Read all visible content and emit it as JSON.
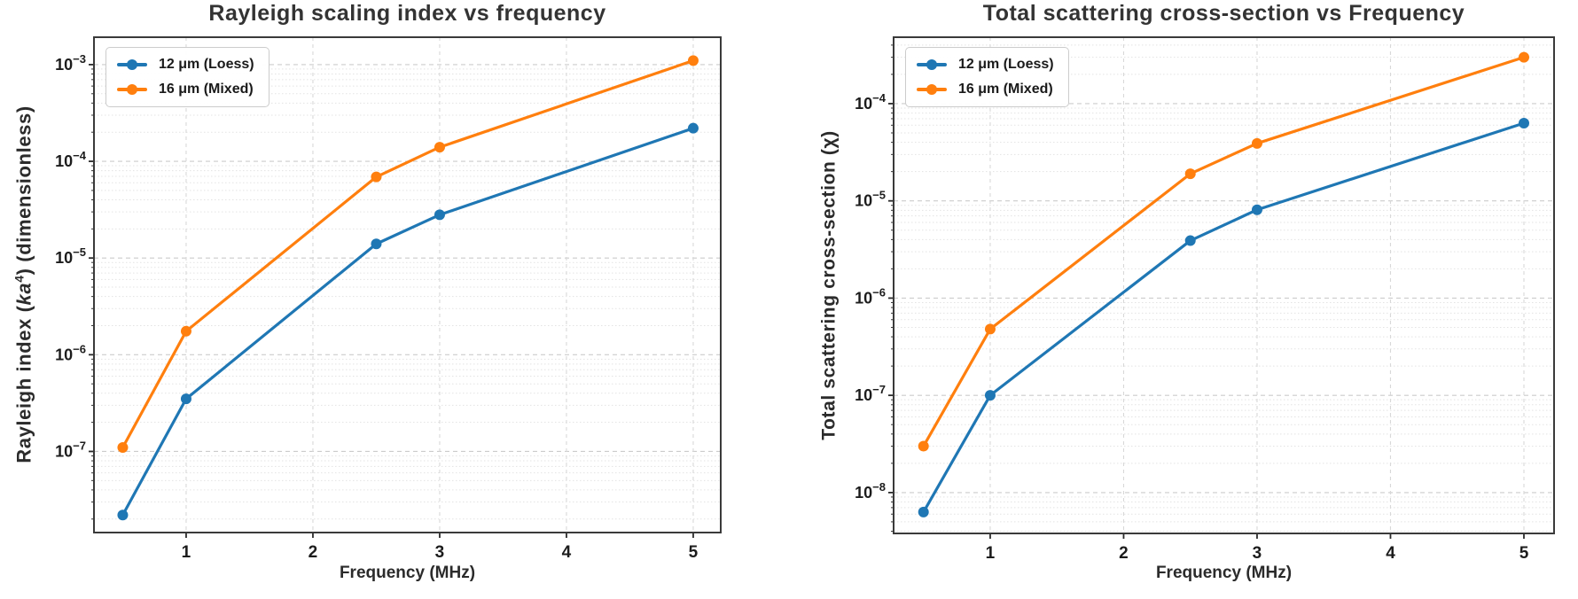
{
  "figure": {
    "background": "#ffffff",
    "text_color": "#333333",
    "accent_blue": "#1f77b4",
    "accent_orange": "#ff7f0e"
  },
  "chart_data": [
    {
      "type": "line",
      "title": "Rayleigh scaling index vs frequency",
      "xlabel": "Frequency (MHz)",
      "ylabel": "Rayleigh index (ka)⁴ (dimensionless)",
      "ylabel_parts": {
        "prefix": "Rayleigh index (",
        "math": "ka",
        "sup": "4",
        "suffix": ") (dimensionless)",
        "close": ")"
      },
      "yscale": "log",
      "grid": true,
      "legend_position": "upper left",
      "x": [
        0.5,
        1,
        2.5,
        3,
        5
      ],
      "series": [
        {
          "name": "12 μm (Loess)",
          "color": "#1f77b4",
          "marker": "circle",
          "values": [
            2.2e-08,
            3.5e-07,
            1.4e-05,
            2.8e-05,
            0.00022
          ]
        },
        {
          "name": "16 μm (Mixed)",
          "color": "#ff7f0e",
          "marker": "circle",
          "values": [
            1.1e-07,
            1.75e-06,
            6.9e-05,
            0.00014,
            0.0011
          ]
        }
      ],
      "x_ticks": [
        1,
        2,
        3,
        4,
        5
      ],
      "y_tick_exponents": [
        -3,
        -4,
        -5,
        -6,
        -7
      ],
      "xlim": [
        0.273,
        5.217
      ],
      "ylim": [
        1.45e-08,
        0.00192
      ]
    },
    {
      "type": "line",
      "title": "Total scattering cross-section vs Frequency",
      "xlabel": "Frequency (MHz)",
      "ylabel": "Total scattering cross-section (χ)",
      "ylabel_parts": {
        "prefix": "Total scattering cross-section (χ)",
        "math": "",
        "sup": "",
        "suffix": "",
        "close": ""
      },
      "yscale": "log",
      "grid": true,
      "legend_position": "upper left",
      "x": [
        0.5,
        1,
        2.5,
        3,
        5
      ],
      "series": [
        {
          "name": "12 μm (Loess)",
          "color": "#1f77b4",
          "marker": "circle",
          "values": [
            6.3e-09,
            1e-07,
            3.9e-06,
            8.1e-06,
            6.3e-05
          ]
        },
        {
          "name": "16 μm (Mixed)",
          "color": "#ff7f0e",
          "marker": "circle",
          "values": [
            3e-08,
            4.8e-07,
            1.9e-05,
            3.9e-05,
            0.0003
          ]
        }
      ],
      "x_ticks": [
        1,
        2,
        3,
        4,
        5
      ],
      "y_tick_exponents": [
        -4,
        -5,
        -6,
        -7,
        -8
      ],
      "xlim": [
        0.276,
        5.226
      ],
      "ylim": [
        3.8e-09,
        0.000482
      ]
    }
  ]
}
